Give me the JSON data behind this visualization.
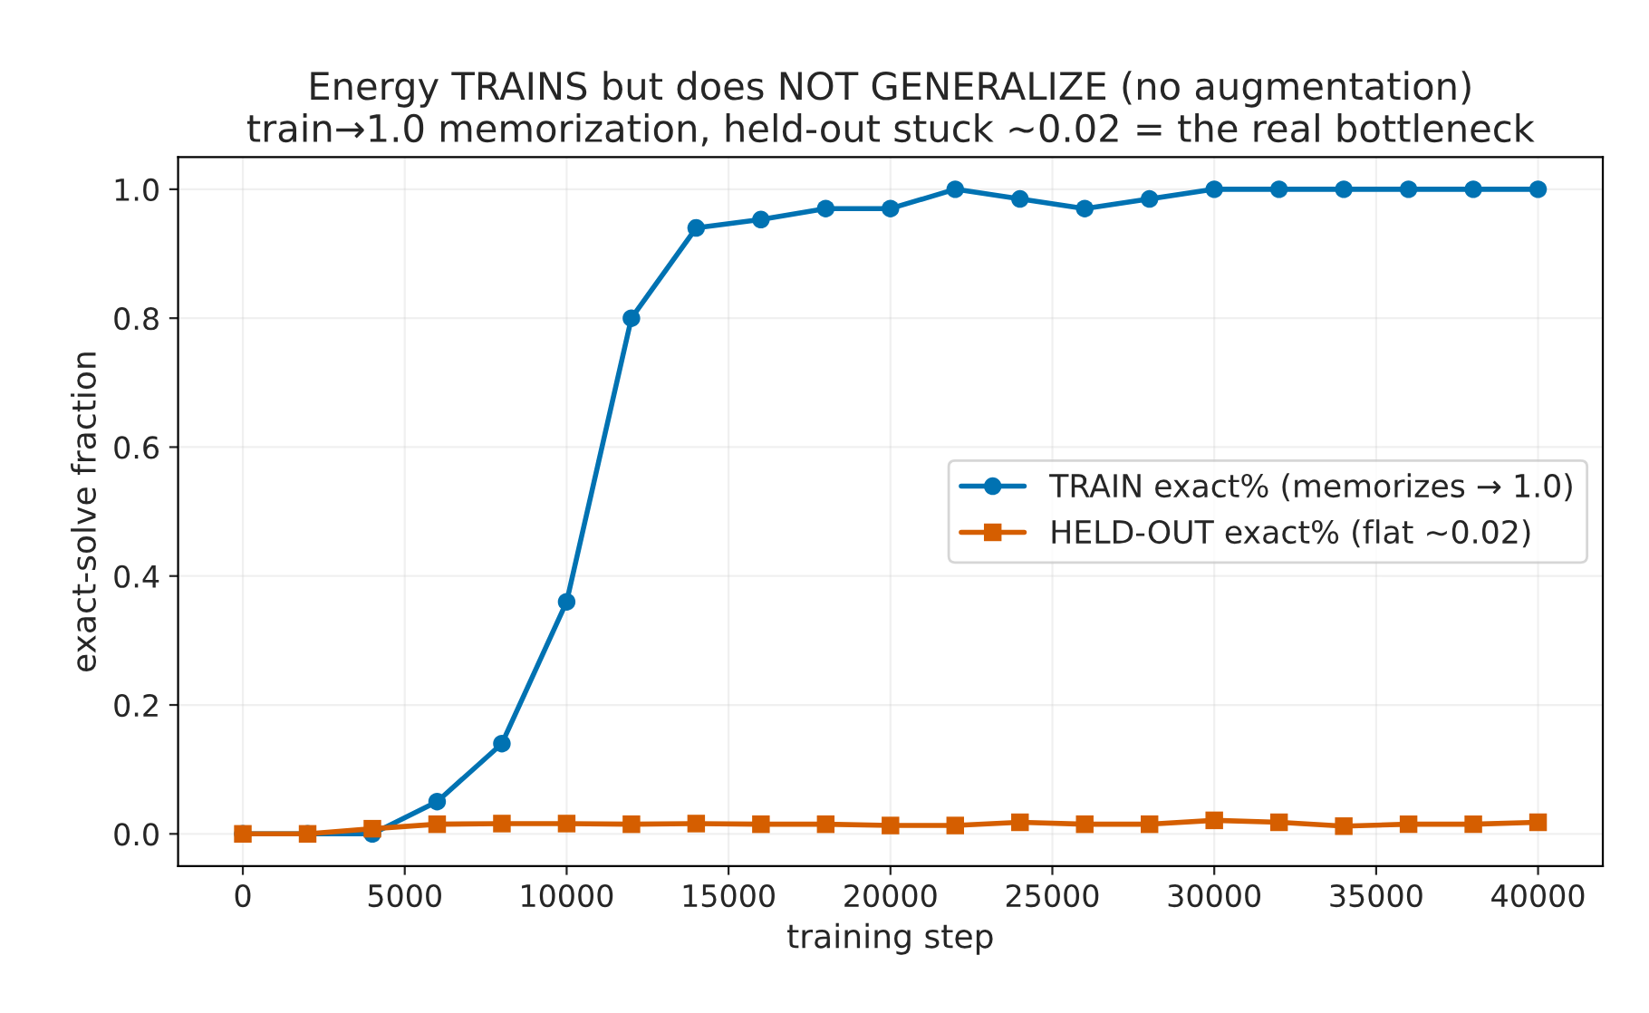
{
  "chart_data": {
    "type": "line",
    "title": "Energy TRAINS but does NOT GENERALIZE (no augmentation)\ntrain→1.0 memorization, held-out stuck ~0.02 = the real bottleneck",
    "xlabel": "training step",
    "ylabel": "exact-solve fraction",
    "x": [
      0,
      2000,
      4000,
      6000,
      8000,
      10000,
      12000,
      14000,
      16000,
      18000,
      20000,
      22000,
      24000,
      26000,
      28000,
      30000,
      32000,
      34000,
      36000,
      38000,
      40000
    ],
    "series": [
      {
        "name": "TRAIN exact% (memorizes → 1.0)",
        "color": "#0072b2",
        "marker": "circle",
        "values": [
          0,
          0,
          0,
          0.05,
          0.14,
          0.36,
          0.8,
          0.94,
          0.953,
          0.97,
          0.97,
          1.0,
          0.985,
          0.97,
          0.985,
          1.0,
          1.0,
          1.0,
          1.0,
          1.0,
          1.0
        ]
      },
      {
        "name": "HELD-OUT exact% (flat ~0.02)",
        "color": "#d55e00",
        "marker": "square",
        "values": [
          0,
          0,
          0.008,
          0.015,
          0.016,
          0.016,
          0.015,
          0.016,
          0.015,
          0.015,
          0.013,
          0.013,
          0.018,
          0.015,
          0.015,
          0.021,
          0.018,
          0.012,
          0.015,
          0.015,
          0.018
        ]
      }
    ],
    "xlim": [
      -2000,
      42000
    ],
    "xticks": [
      0,
      5000,
      10000,
      15000,
      20000,
      25000,
      30000,
      35000,
      40000
    ],
    "ylim": [
      -0.05,
      1.05
    ],
    "yticks": [
      {
        "value": 0,
        "label": "0.0"
      },
      {
        "value": 0.2,
        "label": "0.2"
      },
      {
        "value": 0.4,
        "label": "0.4"
      },
      {
        "value": 0.6,
        "label": "0.6"
      },
      {
        "value": 0.8,
        "label": "0.8"
      },
      {
        "value": 1.0,
        "label": "1.0"
      }
    ],
    "grid": true,
    "legend": "center right",
    "line_style": "solid"
  }
}
